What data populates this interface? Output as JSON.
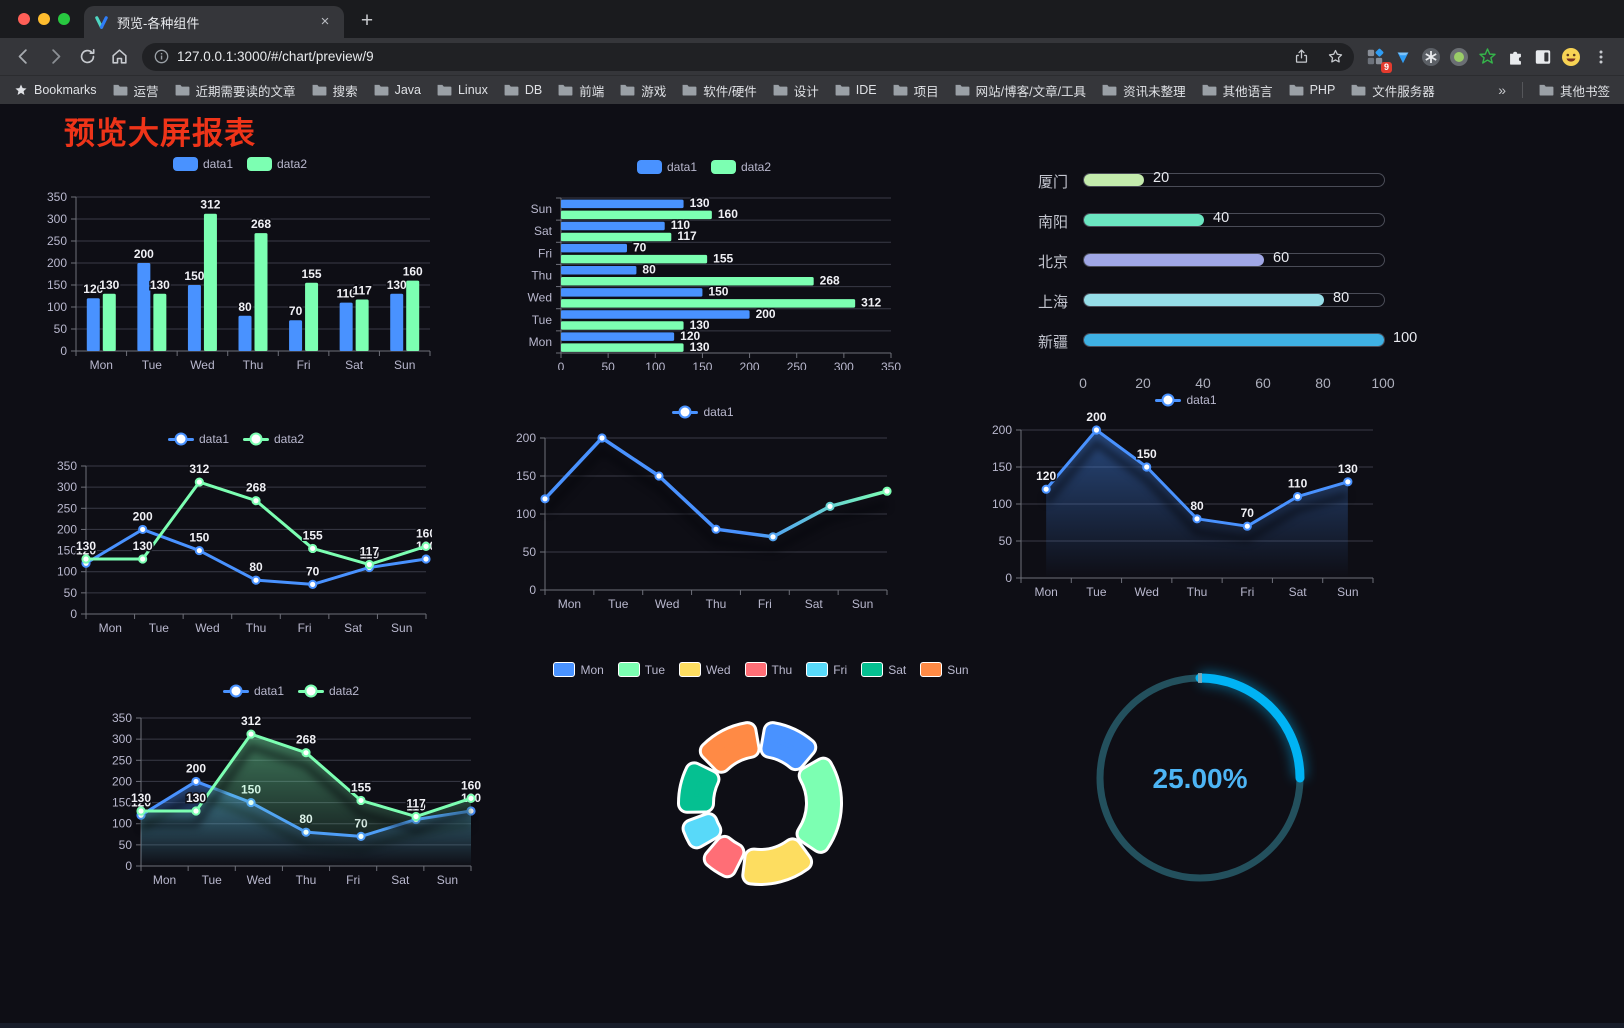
{
  "browser": {
    "tab_title": "预览-各种组件",
    "close_label": "×",
    "new_tab_label": "+",
    "url": "127.0.0.1:3000/#/chart/preview/9",
    "bookmarks_label": "Bookmarks",
    "bookmarks": [
      "运营",
      "近期需要读的文章",
      "搜索",
      "Java",
      "Linux",
      "DB",
      "前端",
      "游戏",
      "软件/硬件",
      "设计",
      "IDE",
      "项目",
      "网站/博客/文章/工具",
      "资讯未整理",
      "其他语言",
      "PHP",
      "文件服务器"
    ],
    "bookmarks_overflow": "»",
    "other_bookmarks_label": "其他书签",
    "extension_badge": "9"
  },
  "page": {
    "title": "预览大屏报表"
  },
  "chart_data": [
    {
      "id": "c1",
      "type": "bar",
      "categories": [
        "Mon",
        "Tue",
        "Wed",
        "Thu",
        "Fri",
        "Sat",
        "Sun"
      ],
      "series": [
        {
          "name": "data1",
          "color": "#4992ff",
          "values": [
            120,
            200,
            150,
            80,
            70,
            110,
            130
          ]
        },
        {
          "name": "data2",
          "color": "#7cffb2",
          "values": [
            130,
            130,
            312,
            268,
            155,
            117,
            160
          ]
        }
      ],
      "ylim": [
        0,
        350
      ],
      "yticks": [
        0,
        50,
        100,
        150,
        200,
        250,
        300,
        350
      ],
      "legend_position": "top",
      "grid": true
    },
    {
      "id": "c2",
      "type": "bar-horizontal",
      "categories": [
        "Mon",
        "Tue",
        "Wed",
        "Thu",
        "Fri",
        "Sat",
        "Sun"
      ],
      "series": [
        {
          "name": "data1",
          "color": "#4992ff",
          "values": [
            120,
            200,
            150,
            80,
            70,
            110,
            130
          ]
        },
        {
          "name": "data2",
          "color": "#7cffb2",
          "values": [
            130,
            130,
            312,
            268,
            155,
            117,
            160
          ]
        }
      ],
      "xlim": [
        0,
        350
      ],
      "xticks": [
        0,
        50,
        100,
        150,
        200,
        250,
        300,
        350
      ],
      "legend_position": "top",
      "grid": true
    },
    {
      "id": "c3",
      "type": "progress-capsule",
      "max": 100,
      "rows": [
        {
          "label": "厦门",
          "value": 20,
          "color": "#c4ebad"
        },
        {
          "label": "南阳",
          "value": 40,
          "color": "#6be6c1"
        },
        {
          "label": "北京",
          "value": 60,
          "color": "#a0a7e6"
        },
        {
          "label": "上海",
          "value": 80,
          "color": "#96dee8"
        },
        {
          "label": "新疆",
          "value": 100,
          "color": "#3fb1e3"
        }
      ],
      "xticks": [
        0,
        20,
        40,
        60,
        80,
        100
      ]
    },
    {
      "id": "c4",
      "type": "line",
      "categories": [
        "Mon",
        "Tue",
        "Wed",
        "Thu",
        "Fri",
        "Sat",
        "Sun"
      ],
      "series": [
        {
          "name": "data1",
          "color": "#4992ff",
          "values": [
            120,
            200,
            150,
            80,
            70,
            110,
            130
          ]
        },
        {
          "name": "data2",
          "color": "#7cffb2",
          "values": [
            130,
            130,
            312,
            268,
            155,
            117,
            160
          ]
        }
      ],
      "ylim": [
        0,
        350
      ],
      "yticks": [
        0,
        50,
        100,
        150,
        200,
        250,
        300,
        350
      ],
      "point_labels": true,
      "legend_position": "top",
      "grid": true
    },
    {
      "id": "c5",
      "type": "line",
      "categories": [
        "Mon",
        "Tue",
        "Wed",
        "Thu",
        "Fri",
        "Sat",
        "Sun"
      ],
      "series": [
        {
          "name": "data1",
          "gradient": [
            "#4992ff",
            "#7cffb2"
          ],
          "values": [
            120,
            200,
            150,
            80,
            70,
            110,
            130
          ]
        }
      ],
      "ylim": [
        0,
        200
      ],
      "yticks": [
        0,
        50,
        100,
        150,
        200
      ],
      "point_labels": false,
      "shadow": true,
      "legend_position": "top",
      "grid": true
    },
    {
      "id": "c6",
      "type": "area",
      "categories": [
        "Mon",
        "Tue",
        "Wed",
        "Thu",
        "Fri",
        "Sat",
        "Sun"
      ],
      "series": [
        {
          "name": "data1",
          "color": "#4992ff",
          "values": [
            120,
            200,
            150,
            80,
            70,
            110,
            130
          ],
          "area": true
        }
      ],
      "ylim": [
        0,
        200
      ],
      "yticks": [
        0,
        50,
        100,
        150,
        200
      ],
      "point_labels": true,
      "points": "center",
      "shadow": true,
      "legend_position": "top",
      "grid": true
    },
    {
      "id": "c7",
      "type": "area",
      "categories": [
        "Mon",
        "Tue",
        "Wed",
        "Thu",
        "Fri",
        "Sat",
        "Sun"
      ],
      "series": [
        {
          "name": "data1",
          "color": "#4992ff",
          "values": [
            120,
            200,
            150,
            80,
            70,
            110,
            130
          ],
          "area": true
        },
        {
          "name": "data2",
          "color": "#7cffb2",
          "values": [
            130,
            130,
            312,
            268,
            155,
            117,
            160
          ],
          "area": true
        }
      ],
      "ylim": [
        0,
        350
      ],
      "yticks": [
        0,
        50,
        100,
        150,
        200,
        250,
        300,
        350
      ],
      "point_labels": true,
      "shadow": true,
      "legend_position": "top",
      "grid": true
    },
    {
      "id": "c8",
      "type": "donut",
      "categories": [
        "Mon",
        "Tue",
        "Wed",
        "Thu",
        "Fri",
        "Sat",
        "Sun"
      ],
      "values": [
        120,
        200,
        150,
        80,
        70,
        110,
        130
      ],
      "colors": [
        "#4992ff",
        "#7cffb2",
        "#fddd60",
        "#ff6e76",
        "#58d9f9",
        "#05c091",
        "#ff8a45"
      ],
      "legend_position": "top"
    },
    {
      "id": "c9",
      "type": "gauge",
      "value": 25,
      "display": "25.00%",
      "color": "#00b3f4",
      "track_color": "#23505d",
      "text_color": "#4db5f5"
    }
  ]
}
